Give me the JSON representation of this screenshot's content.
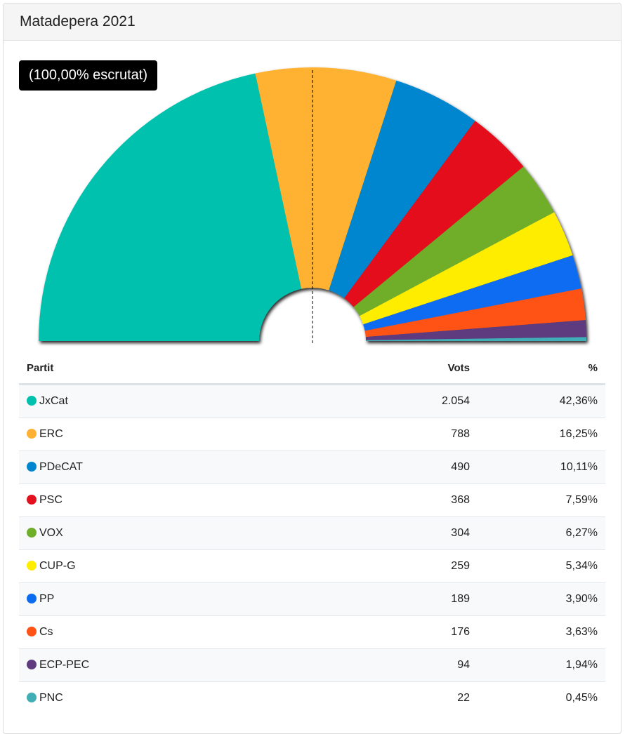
{
  "title": "Matadepera 2021",
  "badge": "(100,00% escrutat)",
  "table": {
    "headers": {
      "party": "Partit",
      "votes": "Vots",
      "pct": "%"
    }
  },
  "chart_data": {
    "type": "pie",
    "layout": "semicircle",
    "categories": [
      "JxCat",
      "ERC",
      "PDeCAT",
      "PSC",
      "VOX",
      "CUP-G",
      "PP",
      "Cs",
      "ECP-PEC",
      "PNC"
    ],
    "votes": [
      "2.054",
      "788",
      "490",
      "368",
      "304",
      "259",
      "189",
      "176",
      "94",
      "22"
    ],
    "pct_labels": [
      "42,36%",
      "16,25%",
      "10,11%",
      "7,59%",
      "6,27%",
      "5,34%",
      "3,90%",
      "3,63%",
      "1,94%",
      "0,45%"
    ],
    "values": [
      42.36,
      16.25,
      10.11,
      7.59,
      6.27,
      5.34,
      3.9,
      3.63,
      1.94,
      0.45
    ],
    "colors": [
      "#00c0ae",
      "#ffb133",
      "#0086ce",
      "#e3101e",
      "#6fae29",
      "#ffed00",
      "#0b6cf2",
      "#ff5315",
      "#5d3b7e",
      "#41aeb6"
    ]
  }
}
